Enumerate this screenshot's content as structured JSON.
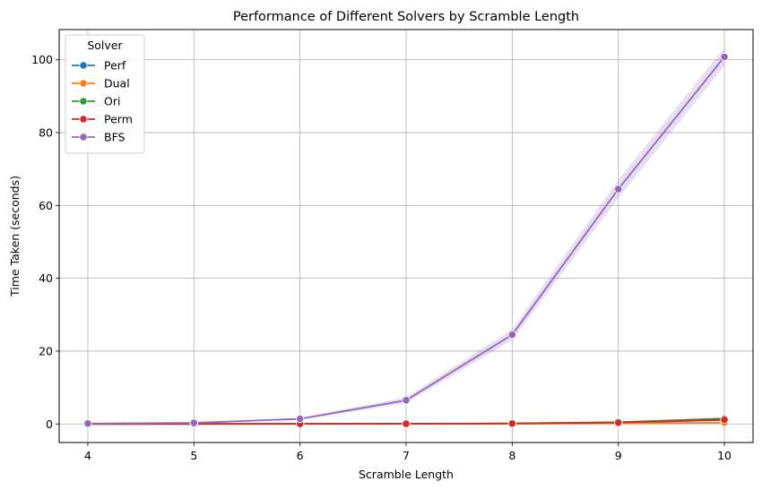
{
  "chart_data": {
    "type": "line",
    "title": "Performance of Different Solvers by Scramble Length",
    "xlabel": "Scramble Length",
    "ylabel": "Time Taken (seconds)",
    "x": [
      4,
      5,
      6,
      7,
      8,
      9,
      10
    ],
    "xlim": [
      3.73,
      10.27
    ],
    "ylim": [
      -5.1,
      108.3
    ],
    "yticks": [
      0,
      20,
      40,
      60,
      80,
      100
    ],
    "grid": true,
    "legend": {
      "title": "Solver",
      "placement": "top-left"
    },
    "series": [
      {
        "name": "Perf",
        "color": "#1f77b4",
        "values": [
          0.01,
          0.02,
          0.03,
          0.05,
          0.1,
          0.35,
          1.1
        ],
        "ci_lower": [
          0.01,
          0.02,
          0.03,
          0.05,
          0.1,
          0.35,
          1.1
        ],
        "ci_upper": [
          0.01,
          0.02,
          0.03,
          0.05,
          0.1,
          0.35,
          1.1
        ]
      },
      {
        "name": "Dual",
        "color": "#ff7f0e",
        "values": [
          0.01,
          0.01,
          0.02,
          0.03,
          0.05,
          0.12,
          0.35
        ],
        "ci_lower": [
          0.01,
          0.01,
          0.02,
          0.03,
          0.05,
          0.12,
          0.35
        ],
        "ci_upper": [
          0.01,
          0.01,
          0.02,
          0.03,
          0.05,
          0.12,
          0.35
        ]
      },
      {
        "name": "Ori",
        "color": "#2ca02c",
        "values": [
          0.01,
          0.02,
          0.04,
          0.06,
          0.15,
          0.5,
          1.5
        ],
        "ci_lower": [
          0.01,
          0.02,
          0.04,
          0.06,
          0.15,
          0.45,
          1.3
        ],
        "ci_upper": [
          0.01,
          0.02,
          0.04,
          0.06,
          0.15,
          0.55,
          1.7
        ]
      },
      {
        "name": "Perm",
        "color": "#d62728",
        "values": [
          0.01,
          0.02,
          0.03,
          0.05,
          0.12,
          0.4,
          1.2
        ],
        "ci_lower": [
          0.01,
          0.02,
          0.03,
          0.05,
          0.12,
          0.35,
          1.0
        ],
        "ci_upper": [
          0.01,
          0.02,
          0.03,
          0.05,
          0.12,
          0.45,
          1.4
        ]
      },
      {
        "name": "BFS",
        "color": "#9467bd",
        "values": [
          0.1,
          0.3,
          1.4,
          6.5,
          24.5,
          64.5,
          100.8
        ],
        "ci_lower": [
          0.09,
          0.25,
          1.1,
          5.7,
          23.0,
          62.0,
          98.3
        ],
        "ci_upper": [
          0.12,
          0.35,
          1.7,
          7.3,
          26.0,
          67.0,
          103.3
        ]
      }
    ]
  }
}
